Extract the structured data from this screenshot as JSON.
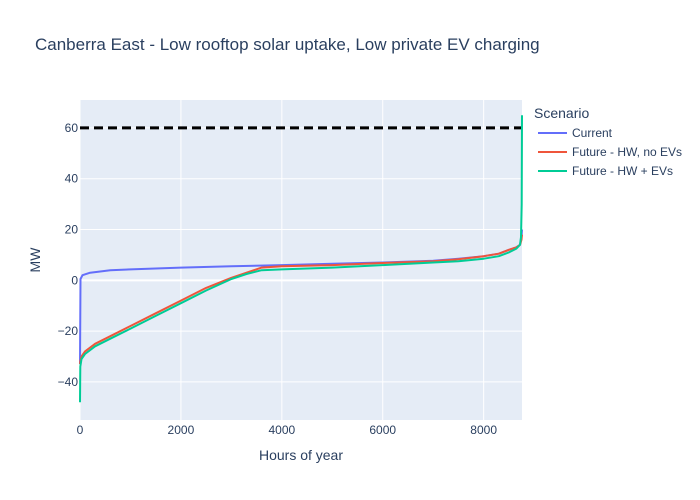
{
  "chart_data": {
    "type": "line",
    "title": "Canberra East - Low rooftop solar uptake, Low private EV charging",
    "xlabel": "Hours of year",
    "ylabel": "MW",
    "xlim": [
      0,
      8760
    ],
    "ylim": [
      -55,
      71
    ],
    "xticks": [
      0,
      2000,
      4000,
      6000,
      8000
    ],
    "xtick_labels": [
      "0",
      "2000",
      "4000",
      "6000",
      "8000"
    ],
    "yticks": [
      -40,
      -20,
      0,
      20,
      40,
      60
    ],
    "ytick_labels": [
      "−40",
      "−20",
      "0",
      "20",
      "40",
      "60"
    ],
    "grid": true,
    "legend_title": "Scenario",
    "legend_position": "right",
    "reference_line": {
      "y": 60,
      "style": "dashed",
      "color": "#000000"
    },
    "series": [
      {
        "name": "Current",
        "color": "#636efa",
        "x": [
          0,
          10,
          50,
          200,
          600,
          1000,
          2000,
          3000,
          4000,
          5000,
          6000,
          7000,
          7500,
          8000,
          8300,
          8500,
          8650,
          8720,
          8750,
          8760
        ],
        "y": [
          -33,
          0.5,
          2,
          3,
          4,
          4.3,
          5,
          5.5,
          6,
          6.5,
          7,
          7.7,
          8.5,
          9.5,
          10.5,
          12,
          13,
          14,
          17,
          20
        ]
      },
      {
        "name": "Future - HW, no EVs",
        "color": "#ef553b",
        "x": [
          0,
          5,
          30,
          100,
          300,
          600,
          1000,
          1500,
          2000,
          2500,
          3000,
          3300,
          3600,
          4000,
          5000,
          6000,
          7000,
          7500,
          8000,
          8300,
          8500,
          8650,
          8720,
          8750,
          8760
        ],
        "y": [
          -33,
          -32,
          -30,
          -28,
          -25,
          -22,
          -18,
          -13,
          -8,
          -3,
          1,
          3,
          5,
          5.5,
          6,
          6.8,
          7.5,
          8.3,
          9.5,
          10.5,
          12,
          13,
          14,
          16,
          18
        ]
      },
      {
        "name": "Future - HW + EVs",
        "color": "#00cc96",
        "x": [
          0,
          5,
          30,
          100,
          300,
          600,
          1000,
          1500,
          2000,
          2500,
          3000,
          3300,
          3600,
          4000,
          5000,
          6000,
          7000,
          7500,
          8000,
          8300,
          8500,
          8650,
          8720,
          8740,
          8755,
          8760
        ],
        "y": [
          -48,
          -34,
          -31,
          -29,
          -26,
          -23,
          -19,
          -14,
          -9,
          -4,
          0.5,
          2.5,
          4,
          4.3,
          5,
          6,
          7,
          7.5,
          8.5,
          9.5,
          11,
          12.5,
          14,
          17,
          30,
          65
        ]
      }
    ]
  }
}
